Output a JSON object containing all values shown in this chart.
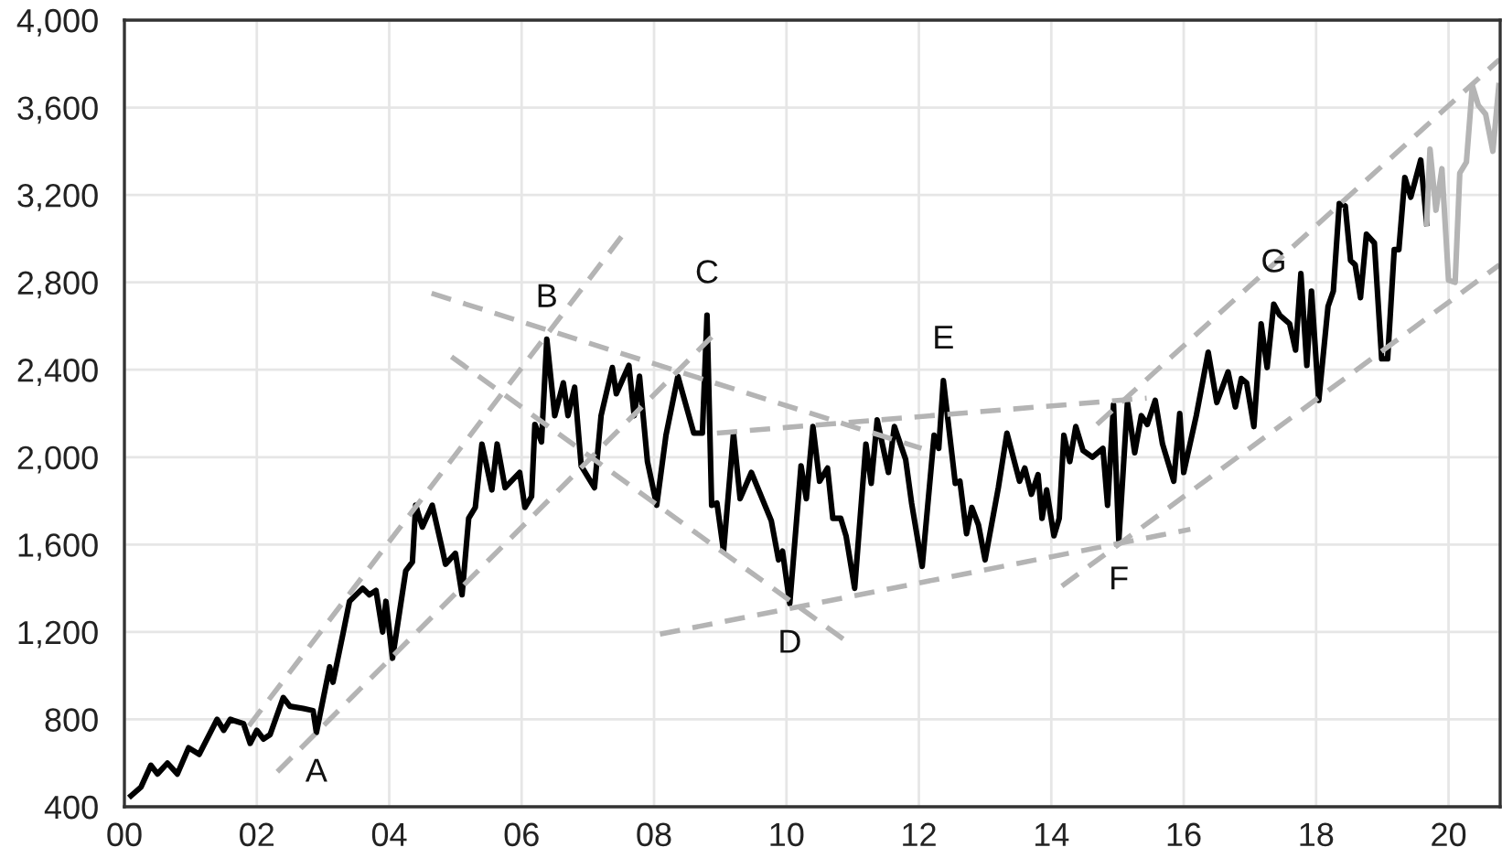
{
  "chart_data": {
    "type": "line",
    "xlim": [
      2000,
      2020.78
    ],
    "ylim": [
      400,
      4000
    ],
    "xticks": [
      {
        "value": 2000,
        "label": "00"
      },
      {
        "value": 2002,
        "label": "02"
      },
      {
        "value": 2004,
        "label": "04"
      },
      {
        "value": 2006,
        "label": "06"
      },
      {
        "value": 2008,
        "label": "08"
      },
      {
        "value": 2010,
        "label": "10"
      },
      {
        "value": 2012,
        "label": "12"
      },
      {
        "value": 2014,
        "label": "14"
      },
      {
        "value": 2016,
        "label": "16"
      },
      {
        "value": 2018,
        "label": "18"
      },
      {
        "value": 2020,
        "label": "20"
      }
    ],
    "yticks": [
      400,
      800,
      {
        "value": 1200,
        "label": "1,200"
      },
      {
        "value": 1600,
        "label": "1,600"
      },
      {
        "value": 2000,
        "label": "2,000"
      },
      {
        "value": 2400,
        "label": "2,400"
      },
      {
        "value": 2800,
        "label": "2,800"
      },
      {
        "value": 3200,
        "label": "3,200"
      },
      {
        "value": 3600,
        "label": "3,600"
      },
      {
        "value": 4000,
        "label": "4,000"
      }
    ],
    "grid": true,
    "legend": false,
    "series": [
      {
        "type": "line",
        "color": "#000000",
        "line_style": "solid",
        "x": [
          2000.1,
          2000.25,
          2000.4,
          2000.5,
          2000.65,
          2000.8,
          2000.97,
          2001.13,
          2001.4,
          2001.5,
          2001.6,
          2001.8,
          2001.9,
          2002.0,
          2002.1,
          2002.2,
          2002.4,
          2002.5,
          2002.7,
          2002.85,
          2002.9,
          2003.1,
          2003.15,
          2003.3,
          2003.4,
          2003.6,
          2003.7,
          2003.8,
          2003.9,
          2003.95,
          2004.05,
          2004.25,
          2004.35,
          2004.4,
          2004.5,
          2004.65,
          2004.8,
          2004.85,
          2005.0,
          2005.1,
          2005.2,
          2005.3,
          2005.4,
          2005.55,
          2005.63,
          2005.75,
          2005.97,
          2006.05,
          2006.15,
          2006.2,
          2006.3,
          2006.38,
          2006.5,
          2006.63,
          2006.7,
          2006.8,
          2006.9,
          2007.1,
          2007.2,
          2007.37,
          2007.43,
          2007.62,
          2007.7,
          2007.78,
          2007.9,
          2008.04,
          2008.18,
          2008.36,
          2008.6,
          2008.73,
          2008.8,
          2008.87,
          2008.95,
          2009.05,
          2009.2,
          2009.3,
          2009.47,
          2009.77,
          2009.88,
          2009.94,
          2010.05,
          2010.22,
          2010.3,
          2010.4,
          2010.5,
          2010.62,
          2010.7,
          2010.82,
          2010.9,
          2011.03,
          2011.2,
          2011.28,
          2011.37,
          2011.54,
          2011.63,
          2011.8,
          2011.89,
          2012.05,
          2012.23,
          2012.3,
          2012.37,
          2012.55,
          2012.62,
          2012.72,
          2012.8,
          2012.9,
          2013.0,
          2013.2,
          2013.33,
          2013.52,
          2013.6,
          2013.7,
          2013.8,
          2013.86,
          2013.93,
          2014.04,
          2014.12,
          2014.19,
          2014.28,
          2014.37,
          2014.48,
          2014.62,
          2014.78,
          2014.85,
          2014.94,
          2015.02,
          2015.15,
          2015.26,
          2015.36,
          2015.45,
          2015.57,
          2015.68,
          2015.85,
          2015.94,
          2016.0,
          2016.19,
          2016.37,
          2016.5,
          2016.67,
          2016.78,
          2016.87,
          2016.95,
          2017.06,
          2017.17,
          2017.26,
          2017.36,
          2017.45,
          2017.6,
          2017.69,
          2017.77,
          2017.86,
          2017.93,
          2018.04,
          2018.18,
          2018.26,
          2018.35,
          2018.44,
          2018.52,
          2018.59,
          2018.67,
          2018.76,
          2018.88,
          2018.99,
          2019.08,
          2019.18,
          2019.25,
          2019.34,
          2019.43,
          2019.58,
          2019.67
        ],
        "values": [
          450,
          490,
          590,
          550,
          600,
          550,
          670,
          640,
          800,
          750,
          800,
          780,
          690,
          750,
          710,
          730,
          900,
          860,
          850,
          840,
          740,
          1040,
          970,
          1190,
          1340,
          1400,
          1370,
          1390,
          1200,
          1340,
          1080,
          1480,
          1520,
          1780,
          1680,
          1780,
          1580,
          1510,
          1560,
          1370,
          1720,
          1770,
          2060,
          1850,
          2060,
          1860,
          1930,
          1770,
          1820,
          2150,
          2070,
          2540,
          2190,
          2340,
          2190,
          2320,
          1960,
          1860,
          2190,
          2410,
          2290,
          2420,
          2190,
          2370,
          1980,
          1780,
          2100,
          2370,
          2110,
          2110,
          2650,
          1780,
          1790,
          1570,
          2110,
          1810,
          1930,
          1710,
          1530,
          1570,
          1330,
          1960,
          1810,
          2140,
          1890,
          1950,
          1720,
          1720,
          1640,
          1400,
          2060,
          1880,
          2170,
          1930,
          2140,
          1990,
          1790,
          1500,
          2100,
          2040,
          2350,
          1880,
          1890,
          1650,
          1770,
          1690,
          1530,
          1860,
          2110,
          1890,
          1950,
          1830,
          1920,
          1720,
          1850,
          1640,
          1720,
          2100,
          1980,
          2140,
          2030,
          2000,
          2040,
          1780,
          2240,
          1620,
          2250,
          2020,
          2190,
          2150,
          2260,
          2060,
          1890,
          2200,
          1930,
          2190,
          2480,
          2250,
          2390,
          2230,
          2360,
          2340,
          2140,
          2610,
          2410,
          2700,
          2650,
          2610,
          2490,
          2840,
          2420,
          2760,
          2260,
          2690,
          2760,
          3160,
          3150,
          2900,
          2880,
          2730,
          3020,
          2980,
          2450,
          2450,
          2950,
          2950,
          3280,
          3190,
          3360,
          3070
        ]
      },
      {
        "type": "line",
        "color": "#b4b4b4",
        "line_style": "solid",
        "x": [
          2019.67,
          2019.72,
          2019.81,
          2019.9,
          2020.0,
          2020.1,
          2020.17,
          2020.27,
          2020.36,
          2020.45,
          2020.56,
          2020.67,
          2020.76
        ],
        "values": [
          3070,
          3410,
          3130,
          3320,
          2810,
          2800,
          3300,
          3350,
          3700,
          3610,
          3570,
          3400,
          3700
        ]
      },
      {
        "type": "line",
        "color": "#b4b4b4",
        "line_style": "dashed",
        "x": [
          2001.88,
          2007.51
        ],
        "values": [
          770,
          3010
        ]
      },
      {
        "type": "line",
        "color": "#b4b4b4",
        "line_style": "dashed",
        "x": [
          2002.31,
          2008.87
        ],
        "values": [
          560,
          2550
        ]
      },
      {
        "type": "line",
        "color": "#b4b4b4",
        "line_style": "dashed",
        "x": [
          2004.64,
          2012.04
        ],
        "values": [
          2750,
          2040
        ]
      },
      {
        "type": "line",
        "color": "#b4b4b4",
        "line_style": "dashed",
        "x": [
          2004.94,
          2010.94
        ],
        "values": [
          2460,
          1150
        ]
      },
      {
        "type": "line",
        "color": "#b4b4b4",
        "line_style": "dashed",
        "x": [
          2008.95,
          2015.44
        ],
        "values": [
          2110,
          2270
        ]
      },
      {
        "type": "line",
        "color": "#b4b4b4",
        "line_style": "dashed",
        "x": [
          2008.09,
          2016.1
        ],
        "values": [
          1190,
          1670
        ]
      },
      {
        "type": "line",
        "color": "#b4b4b4",
        "line_style": "dashed",
        "x": [
          2014.16,
          2020.77
        ],
        "values": [
          1410,
          2880
        ]
      },
      {
        "type": "line",
        "color": "#b4b4b4",
        "line_style": "dashed",
        "x": [
          2014.69,
          2020.77
        ],
        "values": [
          2150,
          3820
        ]
      }
    ],
    "annotations": [
      {
        "text": "A",
        "x": 2002.9,
        "y": 740
      },
      {
        "text": "B",
        "x": 2006.38,
        "y": 2540
      },
      {
        "text": "C",
        "x": 2008.8,
        "y": 2650
      },
      {
        "text": "D",
        "x": 2010.05,
        "y": 1330
      },
      {
        "text": "E",
        "x": 2012.37,
        "y": 2350
      },
      {
        "text": "F",
        "x": 2015.02,
        "y": 1620
      },
      {
        "text": "G",
        "x": 2017.36,
        "y": 2700
      }
    ]
  }
}
